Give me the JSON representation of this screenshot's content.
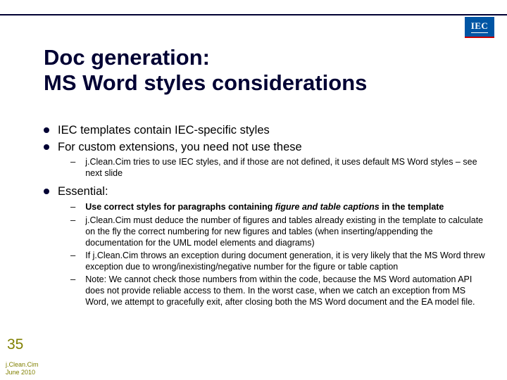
{
  "colors": {
    "rule": "#000033",
    "title": "#000033",
    "text": "#000000",
    "accent": "#808000",
    "logo_bg": "#0055a4",
    "logo_fg": "#ffffff",
    "background": "#ffffff"
  },
  "typography": {
    "title_fontsize_pt": 24,
    "body_l1_fontsize_pt": 13,
    "body_l2_fontsize_pt": 10,
    "slidenum_fontsize_pt": 16,
    "footer_fontsize_pt": 7,
    "font_family": "Arial"
  },
  "logo": {
    "text": "IEC"
  },
  "title": {
    "line1": "Doc generation:",
    "line2": "MS Word styles considerations"
  },
  "bullets": {
    "b1": "IEC templates contain IEC-specific styles",
    "b2": "For custom extensions, you need not use these",
    "b2_1": "j.Clean.Cim tries to use IEC styles, and if those are not defined, it uses default MS Word styles – see next slide",
    "b3": "Essential:",
    "b3_1_pre": "Use correct styles for paragraphs containing ",
    "b3_1_ital": "figure and table captions",
    "b3_1_post": " in the template",
    "b3_2": "j.Clean.Cim must deduce the number of figures and tables already existing in the template to calculate on the fly the correct numbering for new figures and tables (when inserting/appending the documentation for the UML model elements and diagrams)",
    "b3_3": "If j.Clean.Cim throws an exception during document generation, it is very likely that the MS Word threw exception due to wrong/inexisting/negative number for the figure or table caption",
    "b3_4": "Note: We cannot check those numbers from within the code, because the MS Word automation API does not provide reliable access to them. In the worst case, when we catch an exception from MS Word, we attempt to gracefully exit, after closing both the MS Word document and the EA model file."
  },
  "slide_number": "35",
  "footer": {
    "line1": "j.Clean.Cim",
    "line2": "June 2010"
  }
}
